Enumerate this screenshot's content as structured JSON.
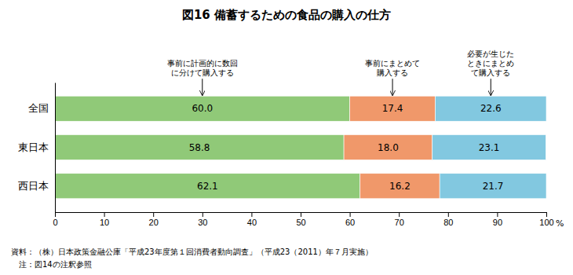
{
  "chart_data": {
    "type": "bar",
    "orientation": "horizontal",
    "stacked": true,
    "data_labels": true,
    "title": "図16   備蓄するための食品の購入の仕方",
    "categories": [
      "全国",
      "東日本",
      "西日本"
    ],
    "series": [
      {
        "color": "#90C978",
        "values": [
          60.0,
          58.8,
          62.1
        ],
        "value_labels": [
          "60.0",
          "58.8",
          "62.1"
        ],
        "annotation": [
          "事前に計画的に数回",
          "に分けて購入する"
        ]
      },
      {
        "color": "#F0986A",
        "values": [
          17.4,
          18.0,
          16.2
        ],
        "value_labels": [
          "17.4",
          "18.0",
          "16.2"
        ],
        "annotation": [
          "事前にまとめて",
          "購入する"
        ]
      },
      {
        "color": "#82C8E0",
        "values": [
          22.6,
          23.1,
          21.7
        ],
        "value_labels": [
          "22.6",
          "23.1",
          "21.7"
        ],
        "annotation": [
          "必要が生じた",
          "ときにまとめ",
          "て購入する"
        ]
      }
    ],
    "xlabel": "%",
    "xlim": [
      0,
      100
    ],
    "xticks": [
      0,
      10,
      20,
      30,
      40,
      50,
      60,
      70,
      80,
      90,
      100
    ],
    "grid": false,
    "footnotes": [
      "資料：（株）日本政策金融公庫「平成23年度第１回消費者動向調査」（平成23（2011）年７月実施）",
      "　注：図14の注釈参照"
    ]
  }
}
